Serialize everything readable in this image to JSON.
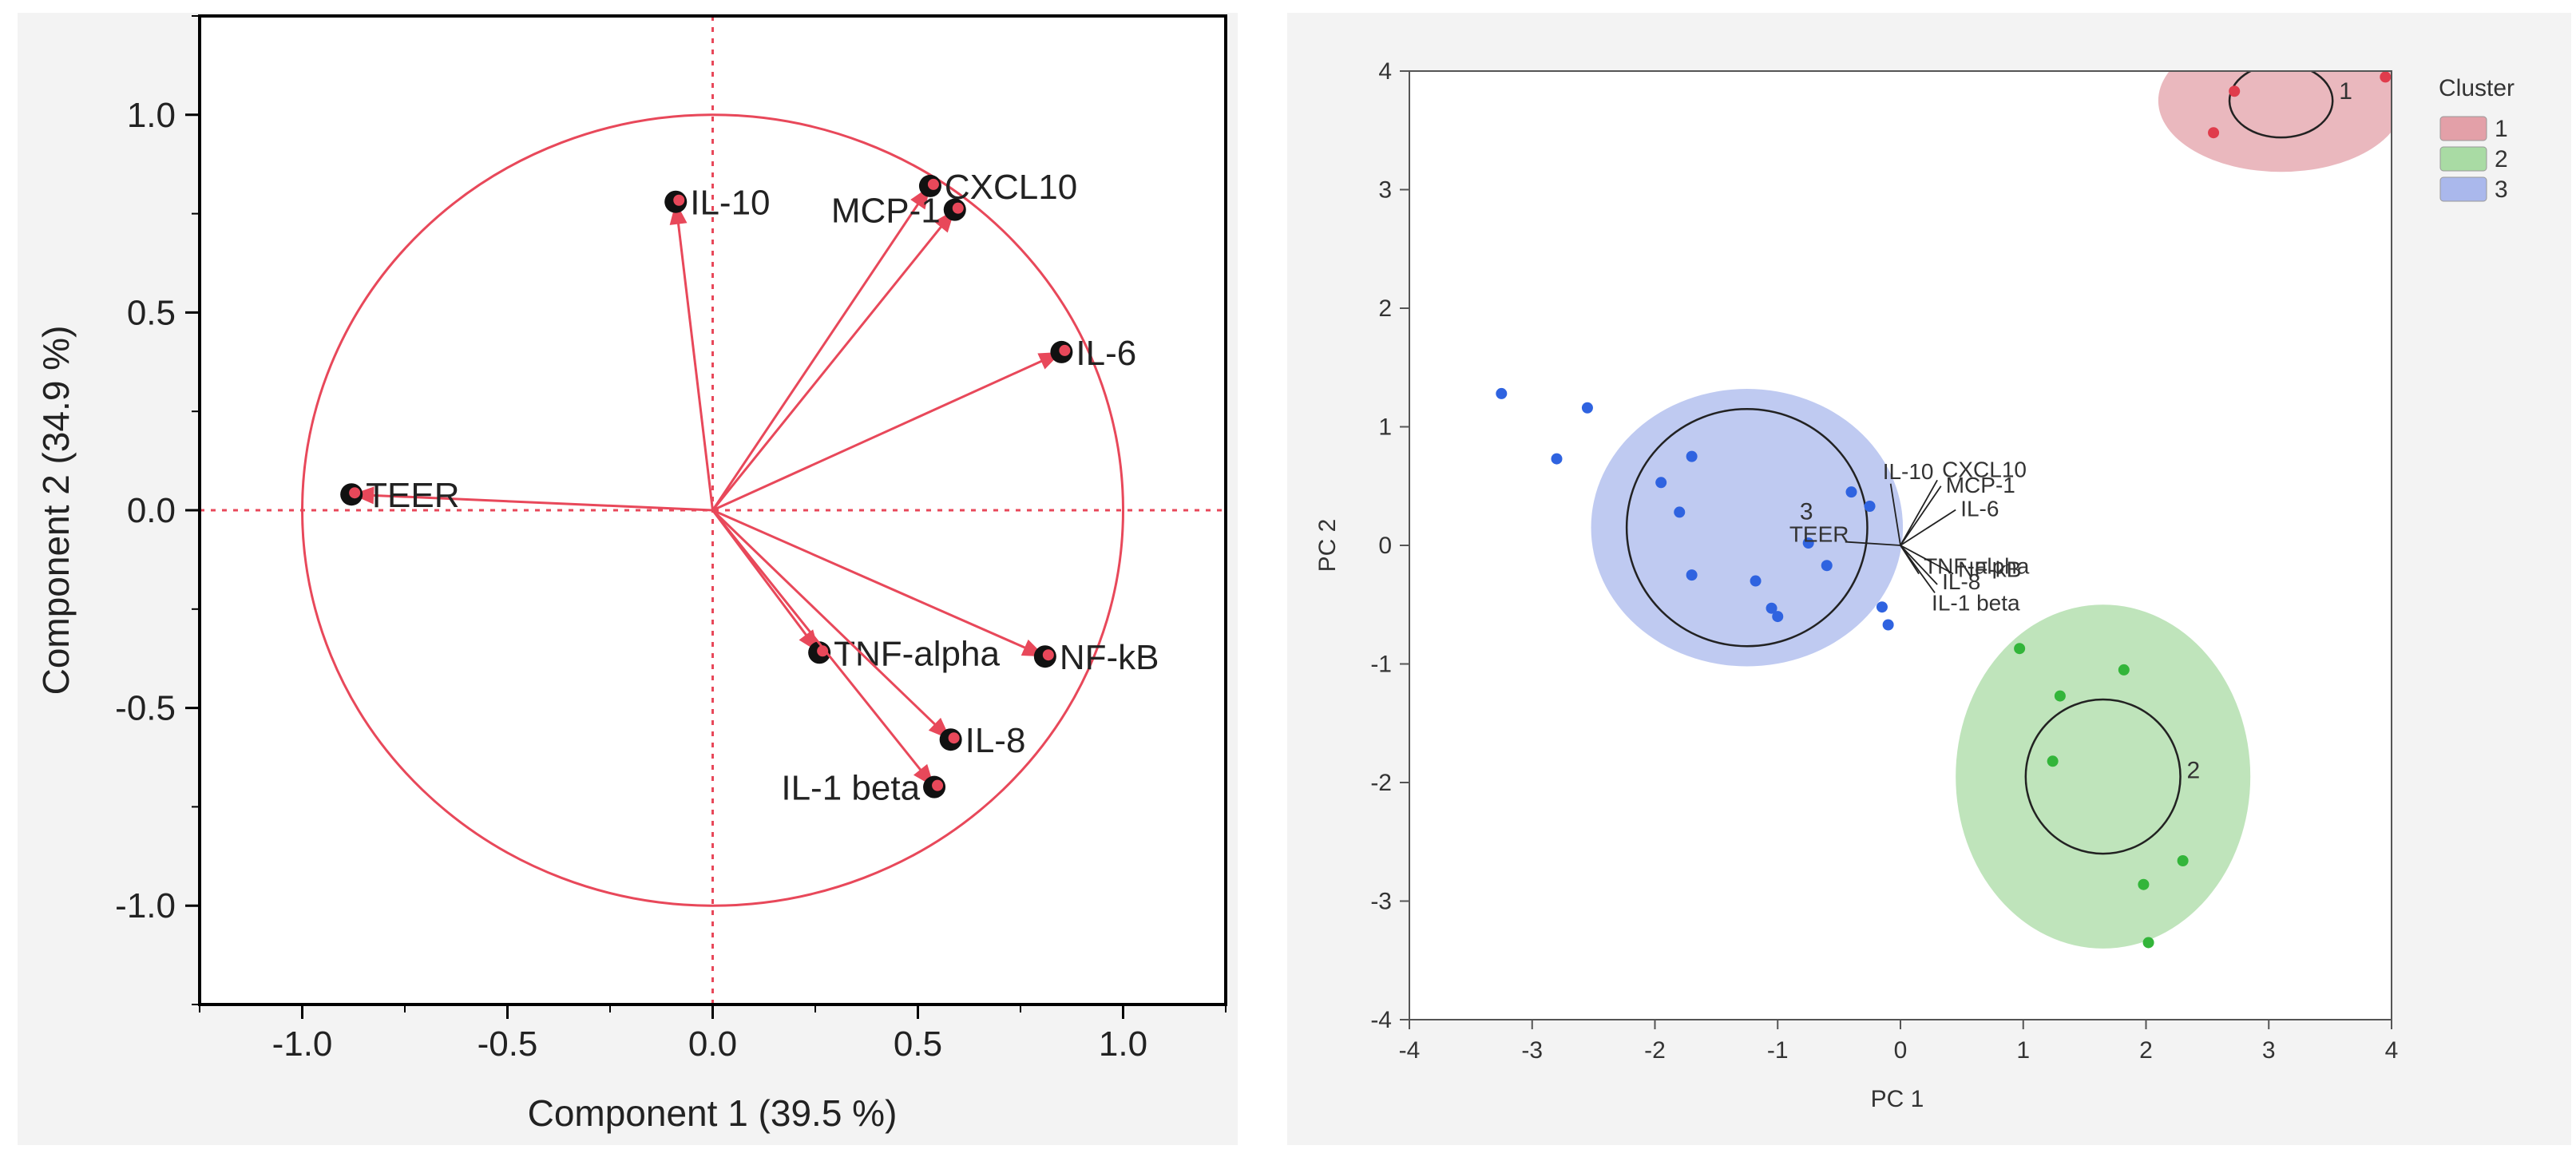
{
  "chart_data": [
    {
      "type": "scatter",
      "subtype": "loading-plot",
      "title": "",
      "xlabel": "Component 1  (39.5 %)",
      "ylabel": "Component 2  (34.9 %)",
      "xlim": [
        -1.25,
        1.25
      ],
      "ylim": [
        -1.25,
        1.25
      ],
      "xticks": [
        -1.0,
        -0.5,
        0.0,
        0.5,
        1.0
      ],
      "yticks": [
        -1.0,
        -0.5,
        0.0,
        0.5,
        1.0
      ],
      "xtick_labels": [
        "-1.0",
        "-0.5",
        "0.0",
        "0.5",
        "1.0"
      ],
      "ytick_labels": [
        "-1.0",
        "-0.5",
        "0.0",
        "0.5",
        "1.0"
      ],
      "unit_circle_radius": 1.0,
      "grid": false,
      "accent_color": "#e8485a",
      "points": [
        {
          "label": "IL-10",
          "x": -0.09,
          "y": 0.78,
          "label_pos": "right"
        },
        {
          "label": "CXCL10",
          "x": 0.53,
          "y": 0.82,
          "label_pos": "right"
        },
        {
          "label": "MCP-1",
          "x": 0.59,
          "y": 0.76,
          "label_pos": "left"
        },
        {
          "label": "IL-6",
          "x": 0.85,
          "y": 0.4,
          "label_pos": "right"
        },
        {
          "label": "TEER",
          "x": -0.88,
          "y": 0.04,
          "label_pos": "right"
        },
        {
          "label": "TNF-alpha",
          "x": 0.26,
          "y": -0.36,
          "label_pos": "right"
        },
        {
          "label": "NF-kB",
          "x": 0.81,
          "y": -0.37,
          "label_pos": "right"
        },
        {
          "label": "IL-8",
          "x": 0.58,
          "y": -0.58,
          "label_pos": "right"
        },
        {
          "label": "IL-1 beta",
          "x": 0.54,
          "y": -0.7,
          "label_pos": "left"
        }
      ]
    },
    {
      "type": "scatter",
      "subtype": "cluster-score-plot",
      "title": "",
      "xlabel": "PC 1",
      "ylabel": "PC 2",
      "xlim": [
        -4,
        4
      ],
      "ylim": [
        -4,
        4
      ],
      "xticks": [
        -4,
        -3,
        -2,
        -1,
        0,
        1,
        2,
        3,
        4
      ],
      "yticks": [
        -4,
        -3,
        -2,
        -1,
        0,
        1,
        2,
        3,
        4
      ],
      "grid": false,
      "legend": {
        "title": "Cluster",
        "position": "top-right",
        "entries": [
          {
            "label": "1",
            "color": "#e3a0a8"
          },
          {
            "label": "2",
            "color": "#a9dba4"
          },
          {
            "label": "3",
            "color": "#aab8ec"
          }
        ]
      },
      "clusters": [
        {
          "label": "1",
          "point_color": "#e03c4c",
          "fill": "#e3a0a8",
          "center": [
            3.1,
            3.75
          ],
          "ellipse_radii": [
            1.0,
            0.6
          ],
          "inner_radii": [
            0.42,
            0.31
          ],
          "points": [
            [
              2.55,
              3.48
            ],
            [
              2.72,
              3.83
            ],
            [
              3.95,
              3.95
            ]
          ]
        },
        {
          "label": "2",
          "point_color": "#33b53a",
          "fill": "#a9dba4",
          "center": [
            1.65,
            -1.95
          ],
          "ellipse_radii": [
            1.2,
            1.45
          ],
          "inner_radii": [
            0.63,
            0.65
          ],
          "points": [
            [
              0.97,
              -0.87
            ],
            [
              1.3,
              -1.27
            ],
            [
              1.82,
              -1.05
            ],
            [
              1.24,
              -1.82
            ],
            [
              2.3,
              -2.66
            ],
            [
              1.98,
              -2.86
            ],
            [
              2.02,
              -3.35
            ]
          ]
        },
        {
          "label": "3",
          "point_color": "#2f63e0",
          "fill": "#aab8ec",
          "center": [
            -1.25,
            0.15
          ],
          "ellipse_radii": [
            1.27,
            1.17
          ],
          "inner_radii": [
            0.98,
            1.0
          ],
          "points": [
            [
              -3.25,
              1.28
            ],
            [
              -2.55,
              1.16
            ],
            [
              -2.8,
              0.73
            ],
            [
              -1.7,
              0.75
            ],
            [
              -1.95,
              0.53
            ],
            [
              -1.8,
              0.28
            ],
            [
              -1.7,
              -0.25
            ],
            [
              -1.18,
              -0.3
            ],
            [
              -1.05,
              -0.53
            ],
            [
              -1.0,
              -0.6
            ],
            [
              -0.75,
              0.02
            ],
            [
              -0.6,
              -0.17
            ],
            [
              -0.4,
              0.45
            ],
            [
              -0.25,
              0.33
            ],
            [
              -0.15,
              -0.52
            ],
            [
              -0.1,
              -0.67
            ]
          ]
        }
      ],
      "biplot_vectors": [
        {
          "label": "IL-10",
          "x": -0.08,
          "y": 0.52
        },
        {
          "label": "CXCL10",
          "x": 0.3,
          "y": 0.55
        },
        {
          "label": "MCP-1",
          "x": 0.33,
          "y": 0.5
        },
        {
          "label": "IL-6",
          "x": 0.45,
          "y": 0.3
        },
        {
          "label": "TEER",
          "x": -0.45,
          "y": 0.03
        },
        {
          "label": "TNF-alpha",
          "x": 0.15,
          "y": -0.24
        },
        {
          "label": "NF-kB",
          "x": 0.43,
          "y": -0.24
        },
        {
          "label": "IL-8",
          "x": 0.3,
          "y": -0.33
        },
        {
          "label": "IL-1 beta",
          "x": 0.28,
          "y": -0.4
        }
      ]
    }
  ]
}
